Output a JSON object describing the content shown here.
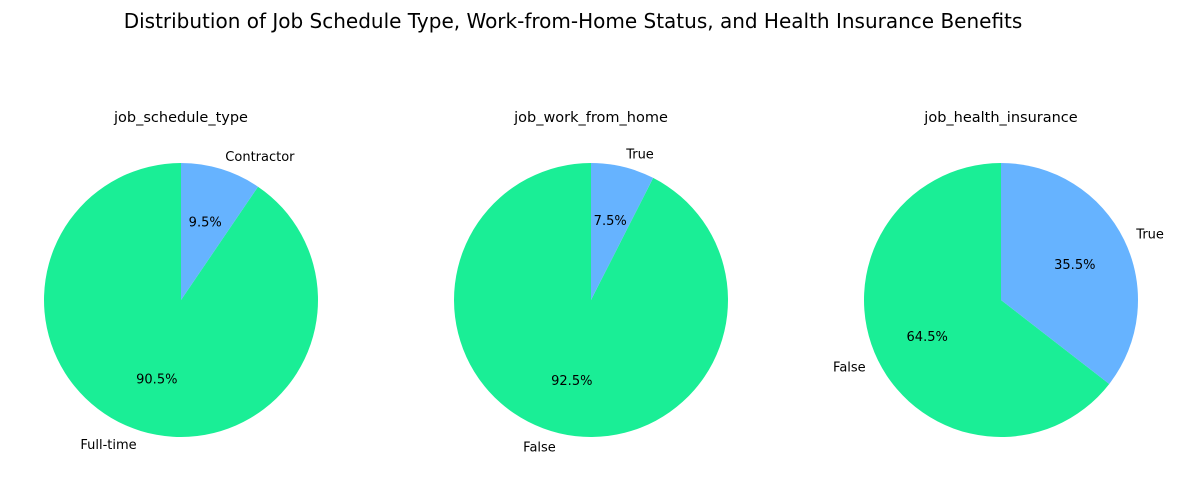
{
  "title": "Distribution of Job Schedule Type, Work-from-Home Status, and Health Insurance Benefits",
  "chart_data": [
    {
      "type": "pie",
      "title": "job_schedule_type",
      "categories": [
        "Full-time",
        "Contractor"
      ],
      "values": [
        90.5,
        9.5
      ],
      "pct_labels": [
        "90.5%",
        "9.5%"
      ],
      "colors": [
        "#1aee96",
        "#66b3ff"
      ],
      "start_angle_deg": 90
    },
    {
      "type": "pie",
      "title": "job_work_from_home",
      "categories": [
        "False",
        "True"
      ],
      "values": [
        92.5,
        7.5
      ],
      "pct_labels": [
        "92.5%",
        "7.5%"
      ],
      "colors": [
        "#1aee96",
        "#66b3ff"
      ],
      "start_angle_deg": 90
    },
    {
      "type": "pie",
      "title": "job_health_insurance",
      "categories": [
        "False",
        "True"
      ],
      "values": [
        64.5,
        35.5
      ],
      "pct_labels": [
        "64.5%",
        "35.5%"
      ],
      "colors": [
        "#1aee96",
        "#66b3ff"
      ],
      "start_angle_deg": 90
    }
  ]
}
